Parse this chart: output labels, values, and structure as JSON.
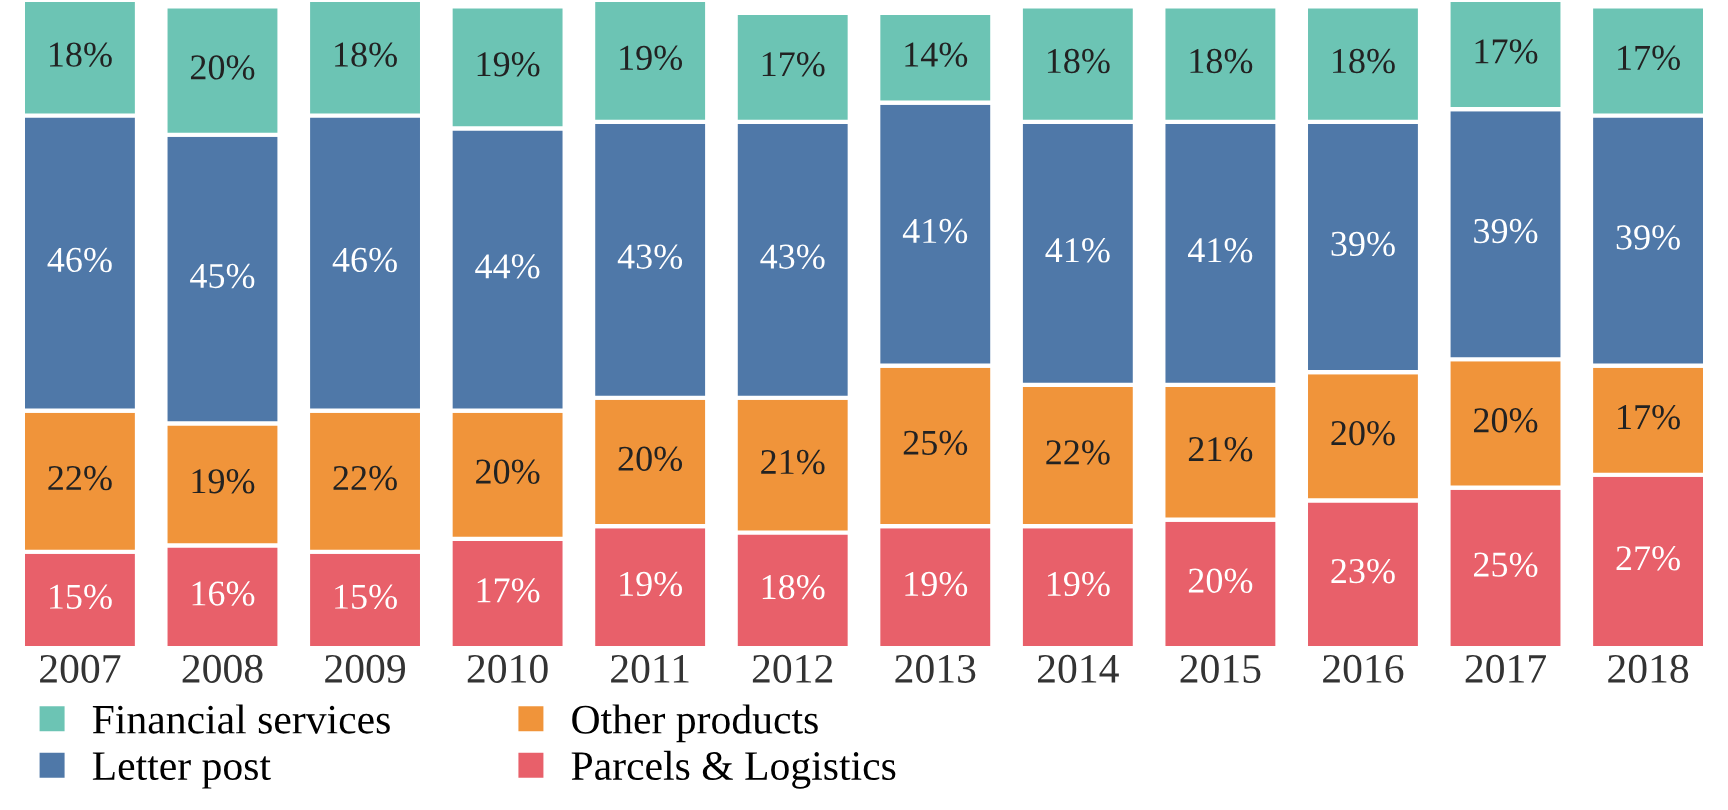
{
  "chart_data": {
    "type": "bar",
    "stacked": true,
    "legend": "bottom",
    "grid": false,
    "categories": [
      "2007",
      "2008",
      "2009",
      "2010",
      "2011",
      "2012",
      "2013",
      "2014",
      "2015",
      "2016",
      "2017",
      "2018"
    ],
    "series": [
      {
        "name": "Parcels & Logistics",
        "color": "#e8606a",
        "values": [
          15,
          16,
          15,
          17,
          19,
          18,
          19,
          19,
          20,
          23,
          25,
          27
        ],
        "value_labels": [
          "15%",
          "16%",
          "15%",
          "17%",
          "19%",
          "18%",
          "19%",
          "19%",
          "20%",
          "23%",
          "25%",
          "27%"
        ]
      },
      {
        "name": "Other products",
        "color": "#f0943a",
        "values": [
          22,
          19,
          22,
          20,
          20,
          21,
          25,
          22,
          21,
          20,
          20,
          17
        ],
        "value_labels": [
          "22%",
          "19%",
          "22%",
          "20%",
          "20%",
          "21%",
          "25%",
          "22%",
          "21%",
          "20%",
          "20%",
          "17%"
        ]
      },
      {
        "name": "Letter post",
        "color": "#4f78a8",
        "values": [
          46,
          45,
          46,
          44,
          43,
          43,
          41,
          41,
          41,
          39,
          39,
          39
        ],
        "value_labels": [
          "46%",
          "45%",
          "46%",
          "44%",
          "43%",
          "43%",
          "41%",
          "41%",
          "41%",
          "39%",
          "39%",
          "39%"
        ]
      },
      {
        "name": "Financial services",
        "color": "#6cc4b4",
        "values": [
          18,
          20,
          18,
          19,
          19,
          17,
          14,
          18,
          18,
          18,
          17,
          17
        ],
        "value_labels": [
          "18%",
          "20%",
          "18%",
          "19%",
          "19%",
          "17%",
          "14%",
          "18%",
          "18%",
          "18%",
          "17%",
          "17%"
        ]
      }
    ]
  }
}
